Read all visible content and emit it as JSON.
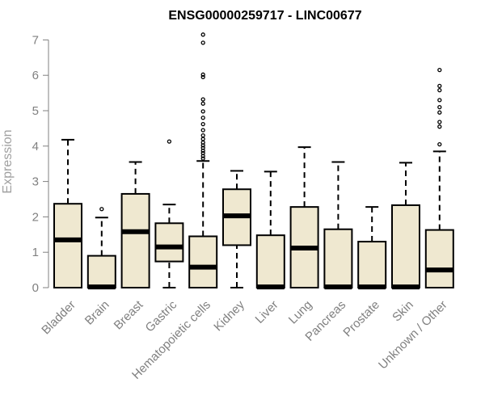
{
  "chart_data": {
    "type": "boxplot",
    "title": "ENSG00000259717 - LINC00677",
    "ylabel": "Expression",
    "ylim": [
      0,
      7.2
    ],
    "yticks": [
      0,
      1,
      2,
      3,
      4,
      5,
      6,
      7
    ],
    "box_fill": "#efe8d0",
    "categories": [
      "Bladder",
      "Brain",
      "Breast",
      "Gastric",
      "Hematopoietic cells",
      "Kidney",
      "Liver",
      "Lung",
      "Pancreas",
      "Prostate",
      "Skin",
      "Unknown / Other"
    ],
    "boxes": [
      {
        "q1": 0,
        "median": 1.35,
        "q3": 2.37,
        "whisker_low": 0,
        "whisker_high": 4.18,
        "outliers": []
      },
      {
        "q1": 0,
        "median": 0.02,
        "q3": 0.9,
        "whisker_low": 0,
        "whisker_high": 1.98,
        "outliers": [
          2.22
        ]
      },
      {
        "q1": 0,
        "median": 1.58,
        "q3": 2.65,
        "whisker_low": 0,
        "whisker_high": 3.55,
        "outliers": []
      },
      {
        "q1": 0.74,
        "median": 1.15,
        "q3": 1.82,
        "whisker_low": 0,
        "whisker_high": 2.35,
        "outliers": [
          4.13
        ]
      },
      {
        "q1": 0,
        "median": 0.58,
        "q3": 1.45,
        "whisker_low": 0,
        "whisker_high": 3.58,
        "outliers": [
          3.65,
          3.72,
          3.8,
          3.87,
          3.95,
          4.02,
          4.1,
          4.2,
          4.3,
          4.45,
          4.62,
          4.8,
          4.98,
          5.2,
          5.32,
          5.95,
          6.02,
          6.92,
          7.15
        ]
      },
      {
        "q1": 1.2,
        "median": 2.03,
        "q3": 2.78,
        "whisker_low": 0,
        "whisker_high": 3.3,
        "outliers": []
      },
      {
        "q1": 0,
        "median": 0.02,
        "q3": 1.48,
        "whisker_low": 0,
        "whisker_high": 3.28,
        "outliers": []
      },
      {
        "q1": 0,
        "median": 1.12,
        "q3": 2.28,
        "whisker_low": 0,
        "whisker_high": 3.97,
        "outliers": []
      },
      {
        "q1": 0,
        "median": 0.02,
        "q3": 1.65,
        "whisker_low": 0,
        "whisker_high": 3.55,
        "outliers": []
      },
      {
        "q1": 0,
        "median": 0.02,
        "q3": 1.3,
        "whisker_low": 0,
        "whisker_high": 2.28,
        "outliers": []
      },
      {
        "q1": 0,
        "median": 0.02,
        "q3": 2.33,
        "whisker_low": 0,
        "whisker_high": 3.53,
        "outliers": []
      },
      {
        "q1": 0,
        "median": 0.5,
        "q3": 1.63,
        "whisker_low": 0,
        "whisker_high": 3.85,
        "outliers": [
          4.05,
          4.55,
          4.68,
          4.95,
          5.1,
          5.3,
          5.58,
          5.7,
          6.15
        ]
      }
    ]
  }
}
